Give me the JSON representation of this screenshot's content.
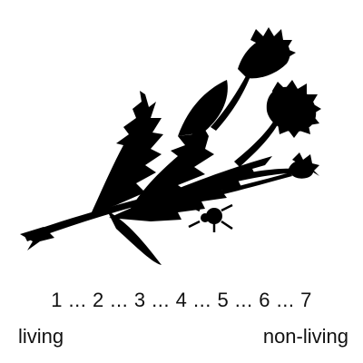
{
  "illustration": {
    "icon": "dandelion-silhouette-icon",
    "fill_color": "#000000"
  },
  "scale": {
    "points": [
      "1",
      "2",
      "3",
      "4",
      "5",
      "6",
      "7"
    ],
    "separator": " ... ",
    "left_label": "living",
    "right_label": "non-living"
  }
}
